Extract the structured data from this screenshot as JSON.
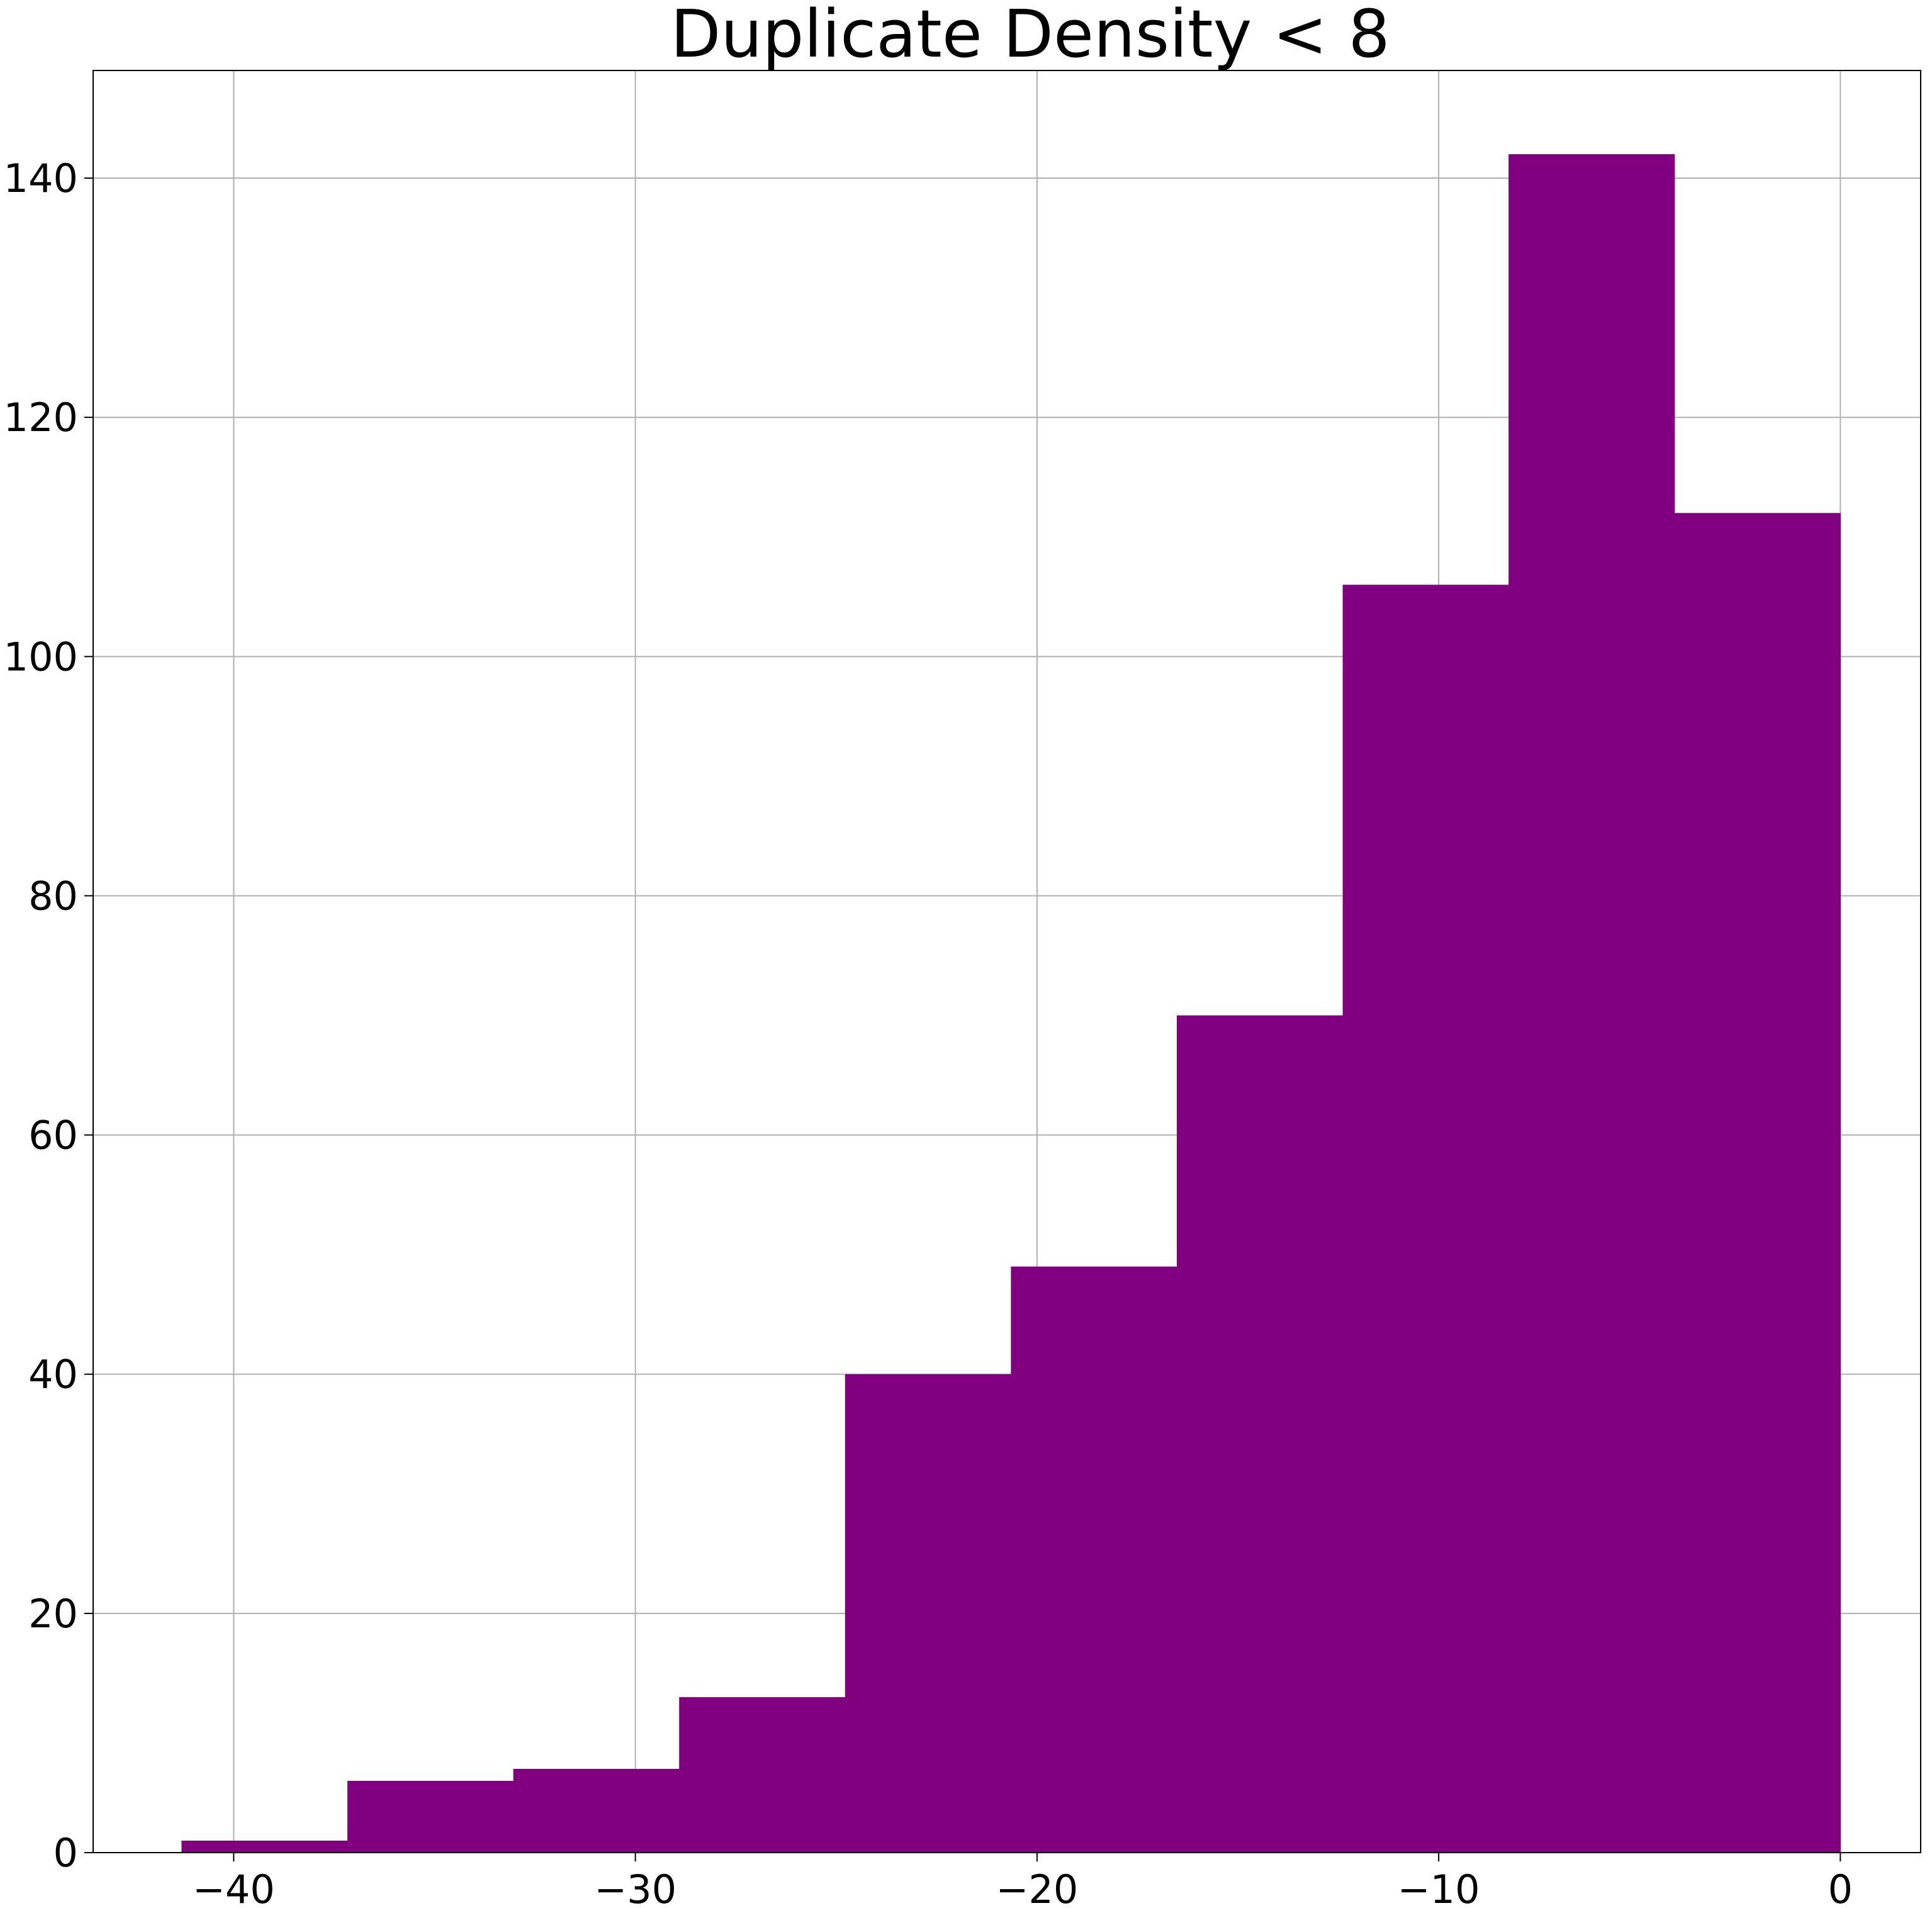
{
  "chart_data": {
    "type": "bar",
    "title": "Duplicate Density < 8",
    "xlabel": "",
    "ylabel": "",
    "color": "#800080",
    "grid": true,
    "xlim": [
      -43.5,
      2.0
    ],
    "ylim": [
      0,
      149
    ],
    "xticks": [
      -40,
      -30,
      -20,
      -10,
      0
    ],
    "xtick_labels": [
      "−40",
      "−30",
      "−20",
      "−10",
      "0"
    ],
    "yticks": [
      0,
      20,
      40,
      60,
      80,
      100,
      120,
      140
    ],
    "ytick_labels": [
      "0",
      "20",
      "40",
      "60",
      "80",
      "100",
      "120",
      "140"
    ],
    "bin_edges": [
      -41.3,
      -37.17,
      -33.04,
      -28.91,
      -24.78,
      -20.65,
      -16.52,
      -12.39,
      -8.26,
      -4.13,
      0.0
    ],
    "values": [
      1,
      6,
      7,
      13,
      40,
      49,
      70,
      106,
      142,
      112
    ]
  }
}
